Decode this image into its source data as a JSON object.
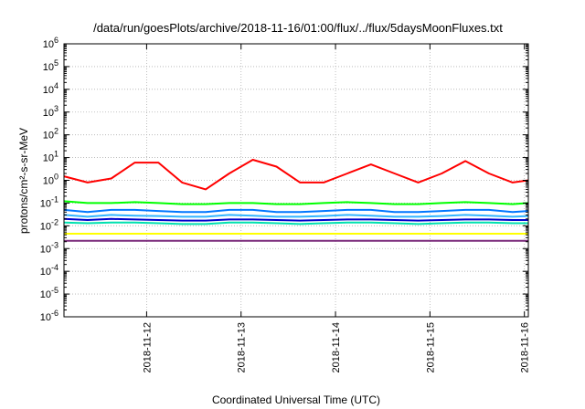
{
  "chart_data": {
    "type": "line",
    "title": "/data/run/goesPlots/archive/2018-11-16/01:00/flux/../flux/5daysMoonFluxes.txt",
    "xlabel": "Coordinated Universal Time (UTC)",
    "ylabel": "protons/cm²-s-sr-MeV",
    "yscale": "log",
    "ylim_exp": [
      -6,
      6
    ],
    "y_ticks": [
      {
        "base": "10",
        "exp": "-6"
      },
      {
        "base": "10",
        "exp": "-5"
      },
      {
        "base": "10",
        "exp": "-4"
      },
      {
        "base": "10",
        "exp": "-3"
      },
      {
        "base": "10",
        "exp": "-2"
      },
      {
        "base": "10",
        "exp": "-1"
      },
      {
        "base": "10",
        "exp": "0"
      },
      {
        "base": "10",
        "exp": "1"
      },
      {
        "base": "10",
        "exp": "2"
      },
      {
        "base": "10",
        "exp": "3"
      },
      {
        "base": "10",
        "exp": "4"
      },
      {
        "base": "10",
        "exp": "5"
      },
      {
        "base": "10",
        "exp": "6"
      }
    ],
    "xlim": [
      "2018-11-11T03:00",
      "2018-11-16T01:00"
    ],
    "x_ticks": [
      "2018-11-12",
      "2018-11-13",
      "2018-11-14",
      "2018-11-15",
      "2018-11-16"
    ],
    "grid": true,
    "x_hours": [
      0,
      6,
      12,
      18,
      24,
      30,
      36,
      42,
      48,
      54,
      60,
      66,
      72,
      78,
      84,
      90,
      96,
      102,
      108,
      114,
      118
    ],
    "series": [
      {
        "color": "#ff0000",
        "values": [
          1.5,
          0.8,
          1.2,
          6.0,
          6.0,
          0.8,
          0.4,
          2.0,
          8.0,
          4.0,
          0.8,
          0.8,
          2.0,
          5.0,
          2.0,
          0.8,
          2.0,
          7.0,
          2.0,
          0.8,
          1.0
        ]
      },
      {
        "color": "#00ff00",
        "values": [
          0.12,
          0.1,
          0.1,
          0.11,
          0.1,
          0.09,
          0.09,
          0.1,
          0.1,
          0.09,
          0.09,
          0.1,
          0.11,
          0.1,
          0.09,
          0.09,
          0.1,
          0.11,
          0.1,
          0.09,
          0.1
        ]
      },
      {
        "color": "#0077ff",
        "values": [
          0.05,
          0.04,
          0.05,
          0.05,
          0.045,
          0.04,
          0.04,
          0.05,
          0.05,
          0.04,
          0.04,
          0.045,
          0.05,
          0.05,
          0.04,
          0.04,
          0.045,
          0.05,
          0.05,
          0.04,
          0.045
        ]
      },
      {
        "color": "#33b5ff",
        "values": [
          0.03,
          0.025,
          0.03,
          0.028,
          0.027,
          0.025,
          0.025,
          0.03,
          0.028,
          0.025,
          0.025,
          0.027,
          0.03,
          0.028,
          0.025,
          0.025,
          0.027,
          0.03,
          0.028,
          0.025,
          0.027
        ]
      },
      {
        "color": "#00e0b0",
        "values": [
          0.014,
          0.013,
          0.014,
          0.014,
          0.013,
          0.012,
          0.012,
          0.014,
          0.014,
          0.013,
          0.012,
          0.013,
          0.014,
          0.014,
          0.013,
          0.012,
          0.013,
          0.014,
          0.014,
          0.013,
          0.013
        ]
      },
      {
        "color": "#0000cc",
        "values": [
          0.02,
          0.018,
          0.02,
          0.019,
          0.018,
          0.017,
          0.017,
          0.019,
          0.019,
          0.018,
          0.017,
          0.018,
          0.019,
          0.019,
          0.018,
          0.017,
          0.018,
          0.019,
          0.019,
          0.018,
          0.018
        ]
      },
      {
        "color": "#ffff00",
        "values": [
          0.0045,
          0.0045,
          0.0045,
          0.0045,
          0.0045,
          0.0045,
          0.0045,
          0.0045,
          0.0045,
          0.0045,
          0.0045,
          0.0045,
          0.0045,
          0.0045,
          0.0045,
          0.0045,
          0.0045,
          0.0045,
          0.0045,
          0.0045,
          0.0045
        ]
      },
      {
        "color": "#7a2a7a",
        "values": [
          0.0022,
          0.0022,
          0.0022,
          0.0022,
          0.0022,
          0.0022,
          0.0022,
          0.0022,
          0.0022,
          0.0022,
          0.0022,
          0.0022,
          0.0022,
          0.0022,
          0.0022,
          0.0022,
          0.0022,
          0.0022,
          0.0022,
          0.0022,
          0.0022
        ]
      }
    ]
  }
}
